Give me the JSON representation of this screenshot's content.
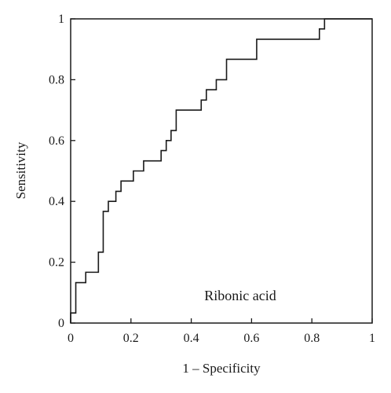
{
  "chart_data": {
    "type": "line",
    "xlabel": "1 – Specificity",
    "ylabel": "Sensitivity",
    "xlim": [
      0,
      1
    ],
    "ylim": [
      0,
      1
    ],
    "x_ticks": [
      "0",
      "0.2",
      "0.4",
      "0.6",
      "0.8",
      "1"
    ],
    "y_ticks": [
      "0",
      "0.2",
      "0.4",
      "0.6",
      "0.8",
      "1"
    ],
    "grid": false,
    "annotations": [
      {
        "text": "Ribonic acid"
      }
    ],
    "series": [
      {
        "points": [
          [
            0,
            0
          ],
          [
            0,
            0.033
          ],
          [
            0.017,
            0.033
          ],
          [
            0.017,
            0.133
          ],
          [
            0.05,
            0.133
          ],
          [
            0.05,
            0.167
          ],
          [
            0.092,
            0.167
          ],
          [
            0.092,
            0.233
          ],
          [
            0.108,
            0.233
          ],
          [
            0.108,
            0.367
          ],
          [
            0.125,
            0.367
          ],
          [
            0.125,
            0.4
          ],
          [
            0.15,
            0.4
          ],
          [
            0.15,
            0.433
          ],
          [
            0.167,
            0.433
          ],
          [
            0.167,
            0.467
          ],
          [
            0.208,
            0.467
          ],
          [
            0.208,
            0.5
          ],
          [
            0.242,
            0.5
          ],
          [
            0.242,
            0.533
          ],
          [
            0.3,
            0.533
          ],
          [
            0.3,
            0.567
          ],
          [
            0.317,
            0.567
          ],
          [
            0.317,
            0.6
          ],
          [
            0.333,
            0.6
          ],
          [
            0.333,
            0.633
          ],
          [
            0.35,
            0.633
          ],
          [
            0.35,
            0.7
          ],
          [
            0.433,
            0.7
          ],
          [
            0.433,
            0.733
          ],
          [
            0.45,
            0.733
          ],
          [
            0.45,
            0.767
          ],
          [
            0.483,
            0.767
          ],
          [
            0.483,
            0.8
          ],
          [
            0.517,
            0.8
          ],
          [
            0.517,
            0.867
          ],
          [
            0.617,
            0.867
          ],
          [
            0.617,
            0.933
          ],
          [
            0.825,
            0.933
          ],
          [
            0.825,
            0.967
          ],
          [
            0.842,
            0.967
          ],
          [
            0.842,
            1.0
          ],
          [
            1,
            1.0
          ]
        ]
      }
    ]
  }
}
